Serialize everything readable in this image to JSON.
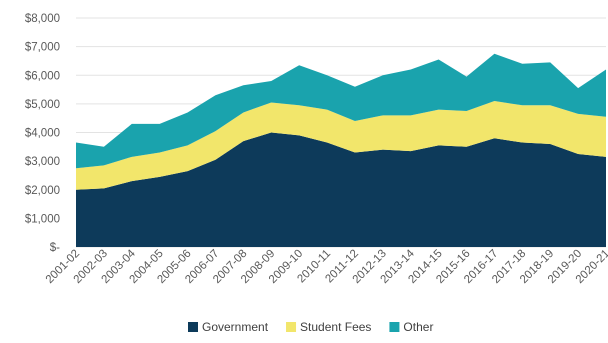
{
  "chart_data": {
    "type": "area",
    "stacked": true,
    "x": [
      "2001-02",
      "2002-03",
      "2003-04",
      "2004-05",
      "2005-06",
      "2006-07",
      "2007-08",
      "2008-09",
      "2009-10",
      "2010-11",
      "2011-12",
      "2012-13",
      "2013-14",
      "2014-15",
      "2015-16",
      "2016-17",
      "2017-18",
      "2018-19",
      "2019-20",
      "2020-21"
    ],
    "series": [
      {
        "name": "Government",
        "color": "#0d3a5a",
        "values": [
          2000,
          2050,
          2300,
          2450,
          2650,
          3050,
          3700,
          4000,
          3900,
          3650,
          3300,
          3400,
          3350,
          3550,
          3500,
          3800,
          3650,
          3600,
          3250,
          3150
        ]
      },
      {
        "name": "Student Fees",
        "color": "#f2e66b",
        "values": [
          750,
          800,
          850,
          850,
          900,
          1000,
          1000,
          1050,
          1050,
          1150,
          1100,
          1200,
          1250,
          1250,
          1250,
          1300,
          1300,
          1350,
          1400,
          1400
        ]
      },
      {
        "name": "Other",
        "color": "#1aa3ad",
        "values": [
          900,
          650,
          1150,
          1000,
          1150,
          1250,
          950,
          750,
          1400,
          1200,
          1200,
          1400,
          1600,
          1750,
          1200,
          1650,
          1450,
          1500,
          900,
          1650
        ]
      }
    ],
    "yticks": [
      "$-",
      "$1,000",
      "$2,000",
      "$3,000",
      "$4,000",
      "$5,000",
      "$6,000",
      "$7,000",
      "$8,000"
    ],
    "ylim": [
      0,
      8000
    ],
    "grid": true,
    "legend": "bottom-center"
  }
}
